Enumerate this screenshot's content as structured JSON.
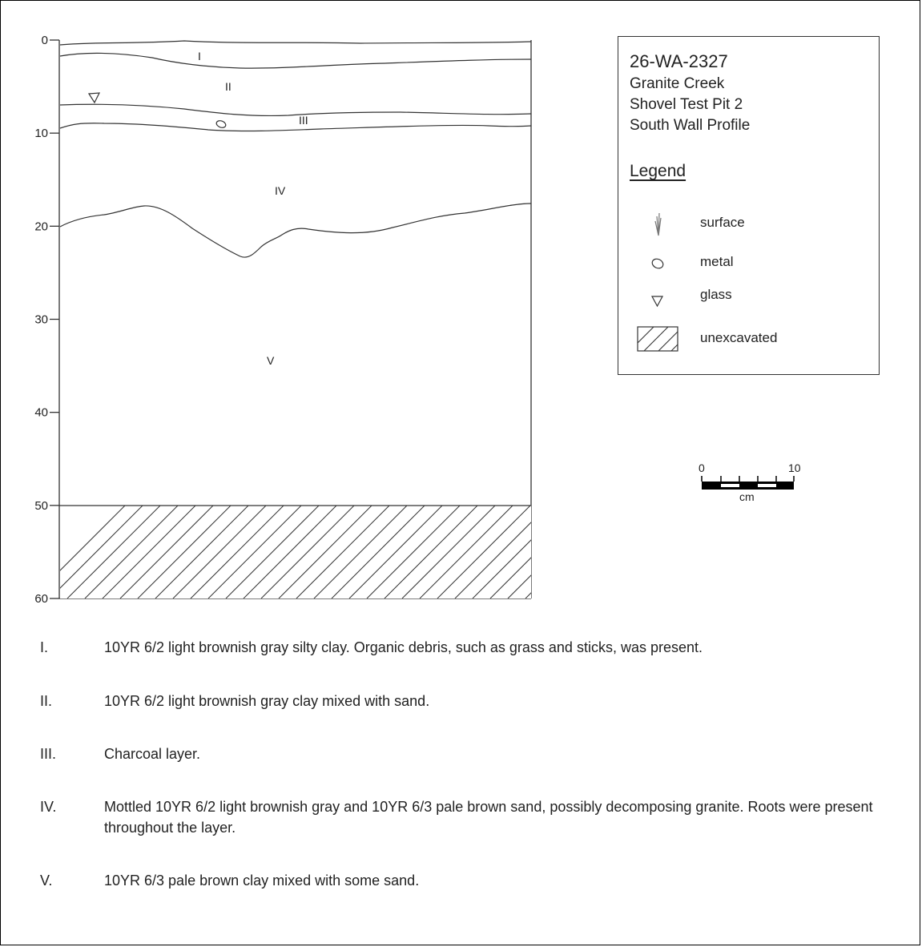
{
  "profile": {
    "depth_ticks": [
      "0",
      "10",
      "20",
      "30",
      "40",
      "50",
      "60"
    ],
    "layer_labels": [
      "I",
      "II",
      "III",
      "IV",
      "V"
    ]
  },
  "legend": {
    "title_lines": [
      "26-WA-2327",
      "Granite Creek",
      "Shovel Test Pit 2",
      "South Wall Profile"
    ],
    "heading": "Legend",
    "items": [
      {
        "icon": "surface-icon",
        "label": "surface"
      },
      {
        "icon": "metal-icon",
        "label": "metal"
      },
      {
        "icon": "glass-icon",
        "label": "glass"
      },
      {
        "icon": "unexcavated-icon",
        "label": "unexcavated"
      }
    ]
  },
  "scale_bar": {
    "start": "0",
    "end": "10",
    "unit": "cm"
  },
  "descriptions": [
    {
      "numeral": "I.",
      "text": "10YR 6/2 light brownish gray silty clay. Organic debris, such as grass and sticks, was present."
    },
    {
      "numeral": "II.",
      "text": "10YR 6/2 light brownish gray clay mixed with sand."
    },
    {
      "numeral": "III.",
      "text": "Charcoal layer."
    },
    {
      "numeral": "IV.",
      "text": "Mottled 10YR 6/2 light brownish gray and 10YR 6/3 pale brown sand, possibly decomposing granite. Roots were present throughout the layer."
    },
    {
      "numeral": "V.",
      "text": "10YR 6/3 pale brown clay mixed with some sand."
    }
  ]
}
